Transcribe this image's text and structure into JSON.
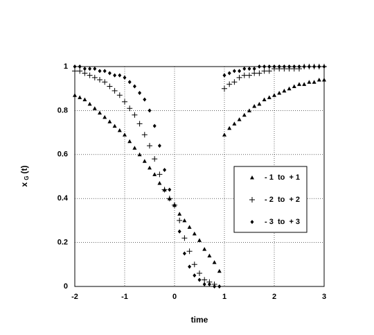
{
  "chart_data": {
    "type": "scatter",
    "xlabel": "time",
    "ylabel": "x",
    "ylabel_sub": "G",
    "ylabel_rest": "(t)",
    "xlim": [
      -2,
      3
    ],
    "ylim": [
      0,
      1
    ],
    "xticks": [
      -2,
      -1,
      0,
      1,
      2,
      3
    ],
    "yticks": [
      0,
      0.2,
      0.4,
      0.6,
      0.8,
      1
    ],
    "grid": true,
    "legend": "right",
    "series": [
      {
        "name": "- 1  to  + 1",
        "color": "#000000",
        "marker": "triangle",
        "x": [
          -2.0,
          -1.9,
          -1.8,
          -1.7,
          -1.6,
          -1.5,
          -1.4,
          -1.3,
          -1.2,
          -1.1,
          -1.0,
          -0.9,
          -0.8,
          -0.7,
          -0.6,
          -0.5,
          -0.4,
          -0.3,
          -0.2,
          -0.1,
          0.0,
          0.1,
          0.2,
          0.3,
          0.4,
          0.5,
          0.6,
          0.7,
          0.8,
          0.9,
          1.0,
          1.1,
          1.2,
          1.3,
          1.4,
          1.5,
          1.6,
          1.7,
          1.8,
          1.9,
          2.0,
          2.1,
          2.2,
          2.3,
          2.4,
          2.5,
          2.6,
          2.7,
          2.8,
          2.9,
          3.0
        ],
        "values": [
          0.87,
          0.86,
          0.85,
          0.83,
          0.81,
          0.79,
          0.77,
          0.75,
          0.73,
          0.71,
          0.69,
          0.66,
          0.63,
          0.6,
          0.57,
          0.54,
          0.51,
          0.47,
          0.44,
          0.4,
          0.37,
          0.33,
          0.3,
          0.27,
          0.24,
          0.21,
          0.17,
          0.14,
          0.11,
          0.07,
          0.69,
          0.72,
          0.74,
          0.76,
          0.78,
          0.8,
          0.82,
          0.83,
          0.85,
          0.86,
          0.87,
          0.88,
          0.89,
          0.9,
          0.91,
          0.92,
          0.92,
          0.93,
          0.93,
          0.94,
          0.94
        ]
      },
      {
        "name": "- 2  to  + 2",
        "color": "#000000",
        "marker": "plus",
        "x": [
          -2.0,
          -1.9,
          -1.8,
          -1.7,
          -1.6,
          -1.5,
          -1.4,
          -1.3,
          -1.2,
          -1.1,
          -1.0,
          -0.9,
          -0.8,
          -0.7,
          -0.6,
          -0.5,
          -0.4,
          -0.3,
          -0.2,
          -0.1,
          0.0,
          0.1,
          0.2,
          0.3,
          0.4,
          0.5,
          0.6,
          0.7,
          0.8,
          1.0,
          1.1,
          1.2,
          1.3,
          1.4,
          1.5,
          1.6,
          1.7,
          1.8,
          1.9,
          2.0,
          2.1,
          2.2,
          2.3,
          2.4,
          2.5,
          2.6,
          2.7,
          2.8,
          2.9,
          3.0
        ],
        "values": [
          0.98,
          0.98,
          0.97,
          0.96,
          0.95,
          0.94,
          0.93,
          0.91,
          0.89,
          0.87,
          0.84,
          0.81,
          0.78,
          0.74,
          0.69,
          0.64,
          0.58,
          0.51,
          0.44,
          0.4,
          0.37,
          0.3,
          0.22,
          0.16,
          0.1,
          0.06,
          0.03,
          0.02,
          0.01,
          0.9,
          0.92,
          0.93,
          0.95,
          0.96,
          0.96,
          0.97,
          0.97,
          0.98,
          0.98,
          0.99,
          0.99,
          0.99,
          0.99,
          0.99,
          0.99,
          1,
          1,
          1,
          1,
          1
        ]
      },
      {
        "name": "- 3  to  + 3",
        "color": "#000000",
        "marker": "diamond",
        "x": [
          -2.0,
          -1.9,
          -1.8,
          -1.7,
          -1.6,
          -1.5,
          -1.4,
          -1.3,
          -1.2,
          -1.1,
          -1.0,
          -0.9,
          -0.8,
          -0.7,
          -0.6,
          -0.5,
          -0.4,
          -0.3,
          -0.2,
          -0.1,
          0.0,
          0.1,
          0.2,
          0.3,
          0.4,
          0.5,
          0.6,
          0.7,
          0.8,
          0.9,
          1.0,
          1.1,
          1.2,
          1.3,
          1.4,
          1.5,
          1.6,
          1.7,
          1.8,
          1.9,
          2.0,
          2.1,
          2.2,
          2.3,
          2.4,
          2.5,
          2.6,
          2.7,
          2.8,
          2.9,
          3.0
        ],
        "values": [
          1,
          1,
          0.99,
          0.99,
          0.99,
          0.98,
          0.98,
          0.97,
          0.96,
          0.96,
          0.95,
          0.93,
          0.91,
          0.88,
          0.85,
          0.8,
          0.73,
          0.64,
          0.53,
          0.44,
          0.37,
          0.25,
          0.15,
          0.09,
          0.05,
          0.03,
          0.01,
          0.01,
          0,
          0,
          0.96,
          0.97,
          0.98,
          0.98,
          0.99,
          0.99,
          0.99,
          1,
          1,
          1,
          1,
          1,
          1,
          1,
          1,
          1,
          1,
          1,
          1,
          1,
          1
        ]
      }
    ]
  }
}
